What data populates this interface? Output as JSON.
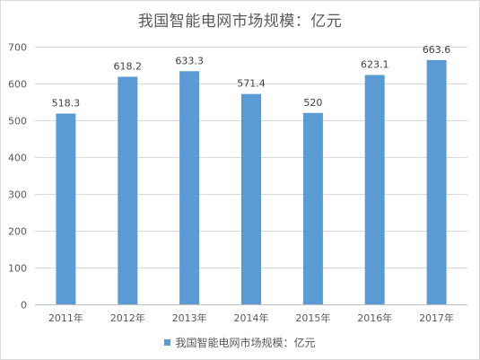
{
  "chart_data": {
    "type": "bar",
    "title": "我国智能电网市场规模：亿元",
    "categories": [
      "2011年",
      "2012年",
      "2013年",
      "2014年",
      "2015年",
      "2016年",
      "2017年"
    ],
    "series": [
      {
        "name": "我国智能电网市场规模：亿元",
        "values": [
          518.3,
          618.2,
          633.3,
          571.4,
          520,
          623.1,
          663.6
        ],
        "labels": [
          "518.3",
          "618.2",
          "633.3",
          "571.4",
          "520",
          "623.1",
          "663.6"
        ]
      }
    ],
    "ylim": [
      0,
      700
    ],
    "yticks": [
      "0",
      "100",
      "200",
      "300",
      "400",
      "500",
      "600",
      "700"
    ],
    "grid": true,
    "legend_position": "bottom",
    "bar_color": "#5b9bd5",
    "grid_color": "#d9d9d9",
    "axis_color": "#bfbfbf"
  }
}
